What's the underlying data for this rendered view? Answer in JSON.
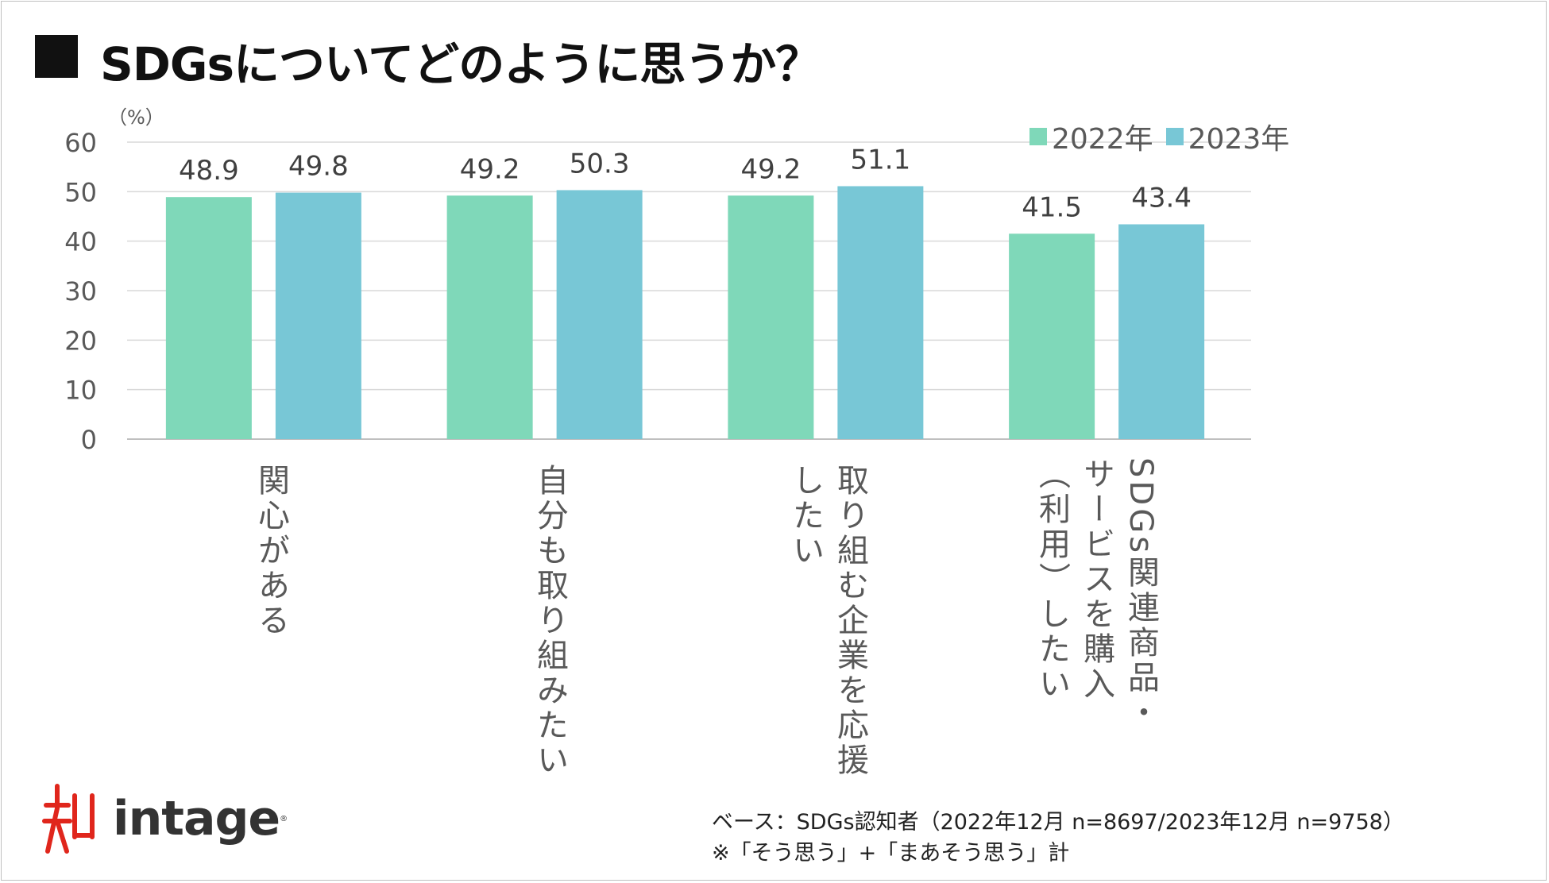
{
  "header": {
    "title": "SDGsについてどのように思うか？"
  },
  "chart_data": {
    "type": "bar",
    "title": "SDGsについてどのように思うか？",
    "unit_label": "（%）",
    "categories": [
      "関心がある",
      "自分も取り組みたい",
      "取り組む企業を応援\nしたい",
      "SDGs関連商品・\nサービスを購入\n（利用）したい"
    ],
    "series": [
      {
        "name": "2022年",
        "color": "#7fd8b9",
        "values": [
          48.9,
          49.2,
          49.2,
          41.5
        ]
      },
      {
        "name": "2023年",
        "color": "#78c7d6",
        "values": [
          49.8,
          50.3,
          51.1,
          43.4
        ]
      }
    ],
    "yticks": [
      "0",
      "10",
      "20",
      "30",
      "40",
      "50",
      "60"
    ],
    "ylim": [
      0,
      60
    ],
    "grid": true,
    "legend_position": "top-right"
  },
  "footer": {
    "brand": "intage",
    "brand_mark": "®",
    "base_note": "ベース：SDGs認知者（2022年12月 n=8697/2023年12月 n=9758）",
    "answer_note": "※「そう思う」+「まあそう思う」計"
  }
}
